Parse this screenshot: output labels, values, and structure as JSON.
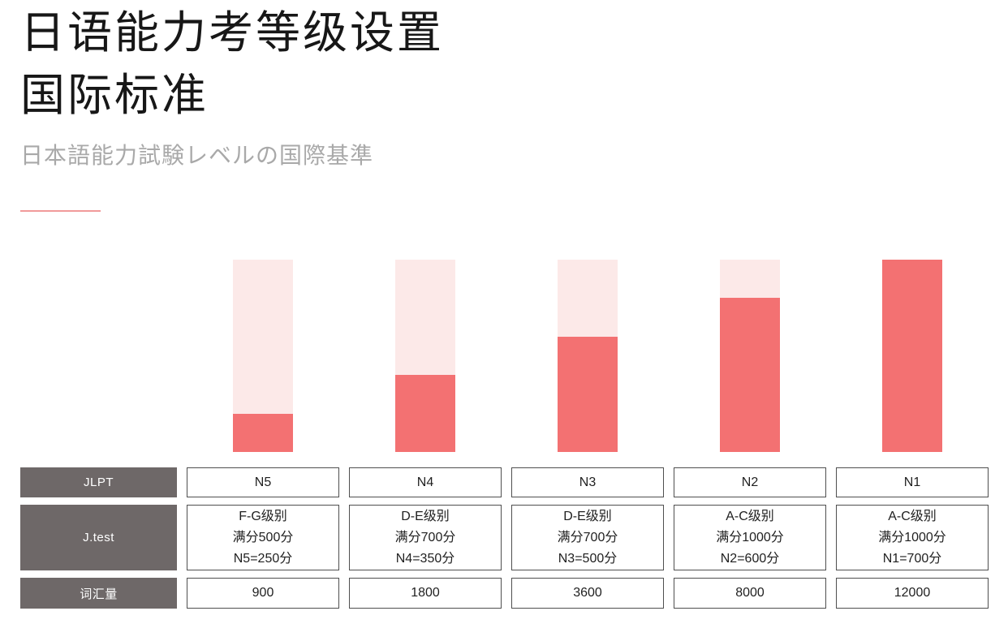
{
  "header": {
    "title_line1": "日语能力考等级设置",
    "title_line2": "国际标准",
    "subtitle": "日本語能力試験レベルの国際基準"
  },
  "chart_data": {
    "type": "bar",
    "categories": [
      "N5",
      "N4",
      "N3",
      "N2",
      "N1"
    ],
    "values": [
      20,
      40,
      60,
      80,
      100
    ],
    "title": "日语能力考等级设置国际标准",
    "xlabel": "",
    "ylabel": "",
    "ylim": [
      0,
      100
    ],
    "grid": false,
    "legend": false,
    "note": "Each bar shows proportional fill of the level track; N5≈20%, N4≈40%, N3≈60%, N2≈80%, N1=100%",
    "bar_color": "#f37172",
    "track_color": "#fce9e8"
  },
  "table": {
    "row_headers": {
      "jlpt": "JLPT",
      "jtest": "J.test",
      "vocab": "词汇量"
    },
    "columns": [
      {
        "jlpt": "N5",
        "jtest": [
          "F-G级别",
          "满分500分",
          "N5=250分"
        ],
        "vocab": "900"
      },
      {
        "jlpt": "N4",
        "jtest": [
          "D-E级别",
          "满分700分",
          "N4=350分"
        ],
        "vocab": "1800"
      },
      {
        "jlpt": "N3",
        "jtest": [
          "D-E级别",
          "满分700分",
          "N3=500分"
        ],
        "vocab": "3600"
      },
      {
        "jlpt": "N2",
        "jtest": [
          "A-C级别",
          "满分1000分",
          "N2=600分"
        ],
        "vocab": "8000"
      },
      {
        "jlpt": "N1",
        "jtest": [
          "A-C级别",
          "满分1000分",
          "N1=700分"
        ],
        "vocab": "12000"
      }
    ]
  },
  "colors": {
    "bar_fill": "#f37172",
    "bar_track": "#fce9e8",
    "row_header_bg": "#6e6868",
    "row_header_text": "#ffffff",
    "cell_border": "#4f4f4f",
    "title_text": "#171717",
    "subtitle_text": "#a9a9a9",
    "divider": "#f19a9a",
    "background": "#ffffff"
  }
}
